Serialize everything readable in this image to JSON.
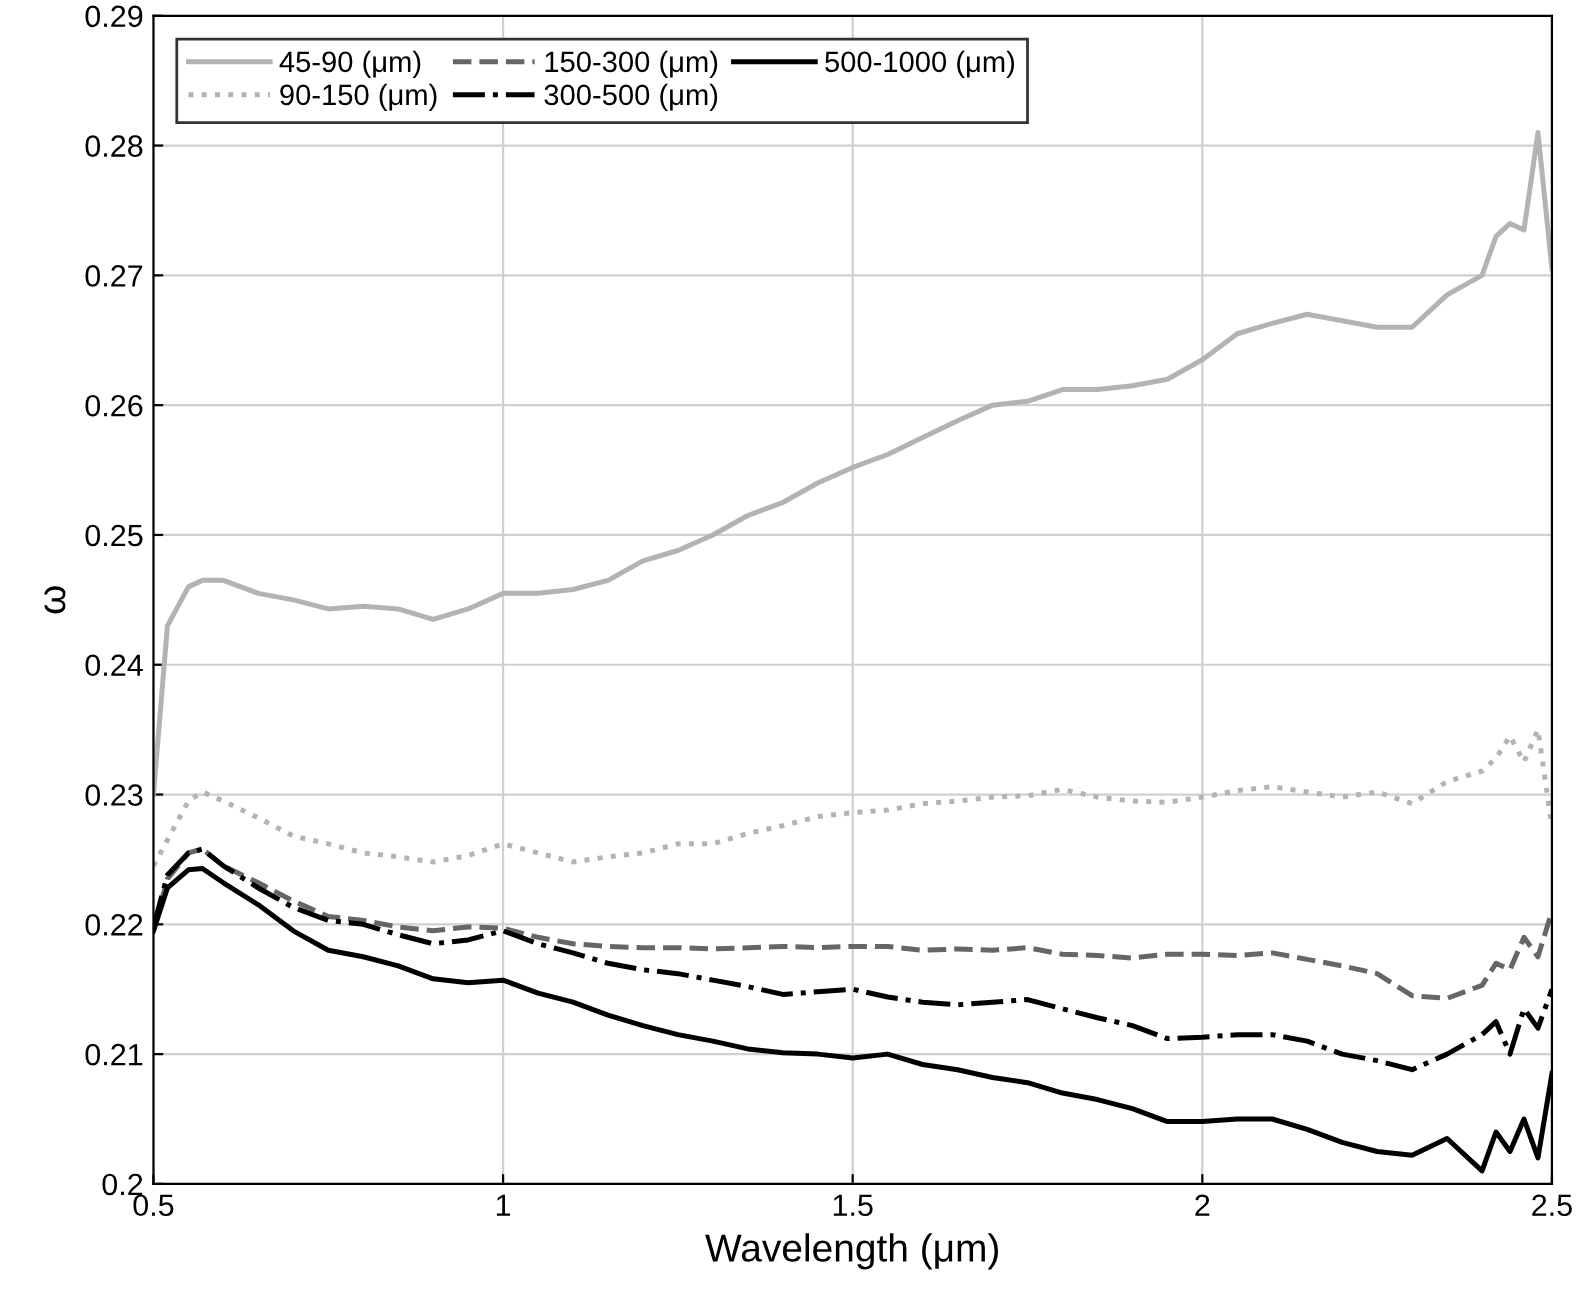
{
  "chart_data": {
    "type": "line",
    "xlabel": "Wavelength (μm)",
    "ylabel": "ω",
    "x": [
      0.5,
      0.52,
      0.55,
      0.57,
      0.6,
      0.65,
      0.7,
      0.75,
      0.8,
      0.85,
      0.9,
      0.95,
      1.0,
      1.05,
      1.1,
      1.15,
      1.2,
      1.25,
      1.3,
      1.35,
      1.4,
      1.45,
      1.5,
      1.55,
      1.6,
      1.65,
      1.7,
      1.75,
      1.8,
      1.85,
      1.9,
      1.95,
      2.0,
      2.05,
      2.1,
      2.15,
      2.2,
      2.25,
      2.3,
      2.35,
      2.4,
      2.42,
      2.44,
      2.46,
      2.48,
      2.5
    ],
    "xlim": [
      0.5,
      2.5
    ],
    "xticks": [
      0.5,
      1,
      1.5,
      2,
      2.5
    ],
    "ylim": [
      0.2,
      0.29
    ],
    "yticks": [
      0.2,
      0.21,
      0.22,
      0.23,
      0.24,
      0.25,
      0.26,
      0.27,
      0.28,
      0.29
    ],
    "grid": true,
    "legend": "top left",
    "series": [
      {
        "name": "45-90 (μm)",
        "color": "#b3b3b3",
        "line_style": "solid",
        "values": [
          0.23,
          0.243,
          0.246,
          0.2465,
          0.2465,
          0.2455,
          0.245,
          0.2443,
          0.2445,
          0.2443,
          0.2435,
          0.2443,
          0.2455,
          0.2455,
          0.2458,
          0.2465,
          0.248,
          0.2488,
          0.25,
          0.2515,
          0.2525,
          0.254,
          0.2552,
          0.2562,
          0.2575,
          0.2588,
          0.26,
          0.2603,
          0.2612,
          0.2612,
          0.2615,
          0.262,
          0.2635,
          0.2655,
          0.2663,
          0.267,
          0.2665,
          0.266,
          0.266,
          0.2685,
          0.27,
          0.273,
          0.274,
          0.2735,
          0.281,
          0.2705
        ]
      },
      {
        "name": "90-150 (μm)",
        "color": "#b3b3b3",
        "line_style": "dotted",
        "values": [
          0.2245,
          0.2265,
          0.2295,
          0.2302,
          0.2295,
          0.2282,
          0.2268,
          0.2262,
          0.2255,
          0.2252,
          0.2248,
          0.2253,
          0.2262,
          0.2255,
          0.2248,
          0.2252,
          0.2255,
          0.2262,
          0.2262,
          0.227,
          0.2276,
          0.2283,
          0.2286,
          0.2288,
          0.2293,
          0.2295,
          0.2298,
          0.2299,
          0.2304,
          0.2298,
          0.2295,
          0.2294,
          0.2298,
          0.2303,
          0.2306,
          0.2302,
          0.2298,
          0.2302,
          0.2293,
          0.231,
          0.2318,
          0.2328,
          0.2345,
          0.2325,
          0.235,
          0.2275
        ]
      },
      {
        "name": "150-300 (μm)",
        "color": "#666666",
        "line_style": "dashed",
        "values": [
          0.2195,
          0.2235,
          0.2255,
          0.2258,
          0.2245,
          0.2232,
          0.2218,
          0.2206,
          0.2203,
          0.2198,
          0.2195,
          0.2198,
          0.2197,
          0.219,
          0.2185,
          0.2183,
          0.2182,
          0.2182,
          0.2181,
          0.2182,
          0.2183,
          0.2182,
          0.2183,
          0.2183,
          0.218,
          0.2181,
          0.218,
          0.2182,
          0.2177,
          0.2176,
          0.2174,
          0.2177,
          0.2177,
          0.2176,
          0.2178,
          0.2173,
          0.2168,
          0.2162,
          0.2145,
          0.2143,
          0.2153,
          0.217,
          0.2165,
          0.219,
          0.2175,
          0.221
        ]
      },
      {
        "name": "300-500 (μm)",
        "color": "#000000",
        "line_style": "dashdot",
        "values": [
          0.2198,
          0.2238,
          0.2255,
          0.2258,
          0.2245,
          0.2228,
          0.2213,
          0.2203,
          0.22,
          0.2192,
          0.2185,
          0.2188,
          0.2195,
          0.2185,
          0.2178,
          0.217,
          0.2165,
          0.2162,
          0.2157,
          0.2152,
          0.2146,
          0.2148,
          0.215,
          0.2144,
          0.214,
          0.2138,
          0.214,
          0.2142,
          0.2135,
          0.2128,
          0.2122,
          0.2112,
          0.2113,
          0.2115,
          0.2115,
          0.211,
          0.21,
          0.2095,
          0.2088,
          0.21,
          0.2115,
          0.2125,
          0.21,
          0.2135,
          0.212,
          0.215
        ]
      },
      {
        "name": "500-1000 (μm)",
        "color": "#000000",
        "line_style": "solid",
        "values": [
          0.2195,
          0.2228,
          0.2242,
          0.2243,
          0.2232,
          0.2215,
          0.2195,
          0.218,
          0.2175,
          0.2168,
          0.2158,
          0.2155,
          0.2157,
          0.2147,
          0.214,
          0.213,
          0.2122,
          0.2115,
          0.211,
          0.2104,
          0.2101,
          0.21,
          0.2097,
          0.21,
          0.2092,
          0.2088,
          0.2082,
          0.2078,
          0.207,
          0.2065,
          0.2058,
          0.2048,
          0.2048,
          0.205,
          0.205,
          0.2042,
          0.2032,
          0.2025,
          0.2022,
          0.2035,
          0.201,
          0.204,
          0.2025,
          0.205,
          0.202,
          0.2085
        ]
      }
    ]
  }
}
